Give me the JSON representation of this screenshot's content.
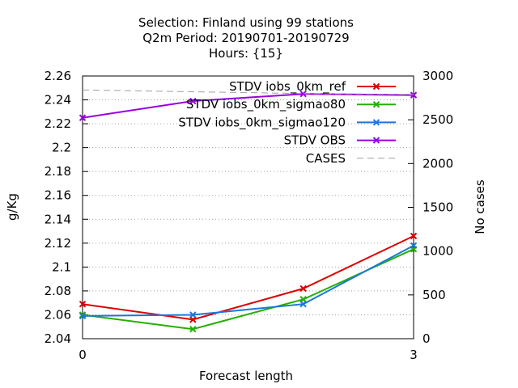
{
  "chart_data": {
    "type": "line",
    "title_lines": [
      "Selection: Finland using    99 stations",
      "Q2m   Period: 20190701-20190729",
      "Hours: {15}"
    ],
    "xlabel": "Forecast length",
    "ylabel": "g/Kg",
    "y2label": "No cases",
    "x": [
      0,
      1,
      2,
      3
    ],
    "xlim": [
      0,
      3
    ],
    "xticks": [
      "0",
      "3"
    ],
    "xtick_values": [
      0,
      3
    ],
    "ylim": [
      2.04,
      2.26
    ],
    "yticks": [
      "2.04",
      "2.06",
      "2.08",
      "2.1",
      "2.12",
      "2.14",
      "2.16",
      "2.18",
      "2.2",
      "2.22",
      "2.24",
      "2.26"
    ],
    "ytick_values": [
      2.04,
      2.06,
      2.08,
      2.1,
      2.12,
      2.14,
      2.16,
      2.18,
      2.2,
      2.22,
      2.24,
      2.26
    ],
    "y2lim": [
      0,
      3000
    ],
    "y2ticks": [
      "0",
      "500",
      "1000",
      "1500",
      "2000",
      "2500",
      "3000"
    ],
    "y2tick_values": [
      0,
      500,
      1000,
      1500,
      2000,
      2500,
      3000
    ],
    "grid": true,
    "legend_position": "top-right",
    "series": [
      {
        "name": "STDV iobs_0km_ref",
        "color": "#dd0000",
        "marker": "x",
        "axis": "y",
        "values": [
          2.069,
          2.056,
          2.082,
          2.126
        ]
      },
      {
        "name": "STDV iobs_0km_sigmao80",
        "color": "#22b000",
        "marker": "x",
        "axis": "y",
        "values": [
          2.06,
          2.048,
          2.073,
          2.115
        ]
      },
      {
        "name": "STDV iobs_0km_sigmao120",
        "color": "#1a78d8",
        "marker": "x",
        "axis": "y",
        "values": [
          2.059,
          2.06,
          2.069,
          2.118
        ]
      },
      {
        "name": "STDV OBS",
        "color": "#9900dd",
        "marker": "x",
        "axis": "y",
        "values": [
          2.225,
          2.239,
          2.245,
          2.244
        ]
      },
      {
        "name": "CASES",
        "color": "#a0a0a0",
        "marker": "none",
        "dashed": true,
        "axis": "y2",
        "values": [
          2840,
          2820,
          2800,
          2790
        ]
      }
    ]
  }
}
